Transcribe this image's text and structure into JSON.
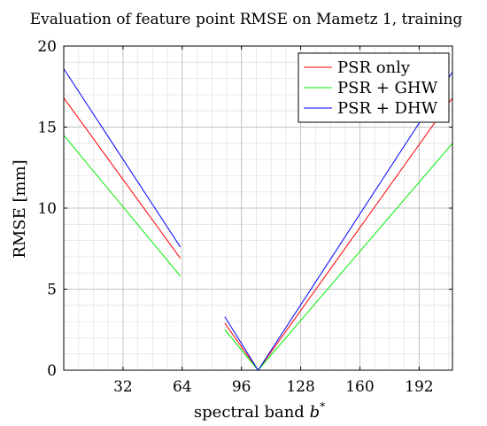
{
  "chart_data": {
    "type": "line",
    "title": "Evaluation of feature point RMSE on Mametz 1, training",
    "xlabel": "spectral band",
    "xlabel_symbol": "b",
    "xlabel_sup": "*",
    "ylabel": "RMSE [mm]",
    "xlim": [
      0,
      210
    ],
    "ylim": [
      0,
      20
    ],
    "xticks": [
      32,
      64,
      96,
      128,
      160,
      192
    ],
    "yticks": [
      0,
      5,
      10,
      15,
      20
    ],
    "x_minor_step": 8,
    "y_minor_step": 1,
    "grid": true,
    "legend_position": "top-right",
    "series": [
      {
        "name": "PSR only",
        "color": "#ff0000",
        "segments": [
          {
            "x": [
              0,
              63
            ],
            "y": [
              16.8,
              6.9
            ]
          },
          {
            "x": [
              87,
              105,
              210
            ],
            "y": [
              2.9,
              0.0,
              16.8
            ]
          }
        ]
      },
      {
        "name": "PSR + GHW",
        "color": "#00ee00",
        "segments": [
          {
            "x": [
              0,
              63
            ],
            "y": [
              14.5,
              5.8
            ]
          },
          {
            "x": [
              87,
              105,
              210
            ],
            "y": [
              2.5,
              0.0,
              14.0
            ]
          }
        ]
      },
      {
        "name": "PSR + DHW",
        "color": "#0000ff",
        "segments": [
          {
            "x": [
              0,
              63
            ],
            "y": [
              18.6,
              7.6
            ]
          },
          {
            "x": [
              87,
              105,
              210
            ],
            "y": [
              3.3,
              0.0,
              18.4
            ]
          }
        ]
      }
    ]
  }
}
